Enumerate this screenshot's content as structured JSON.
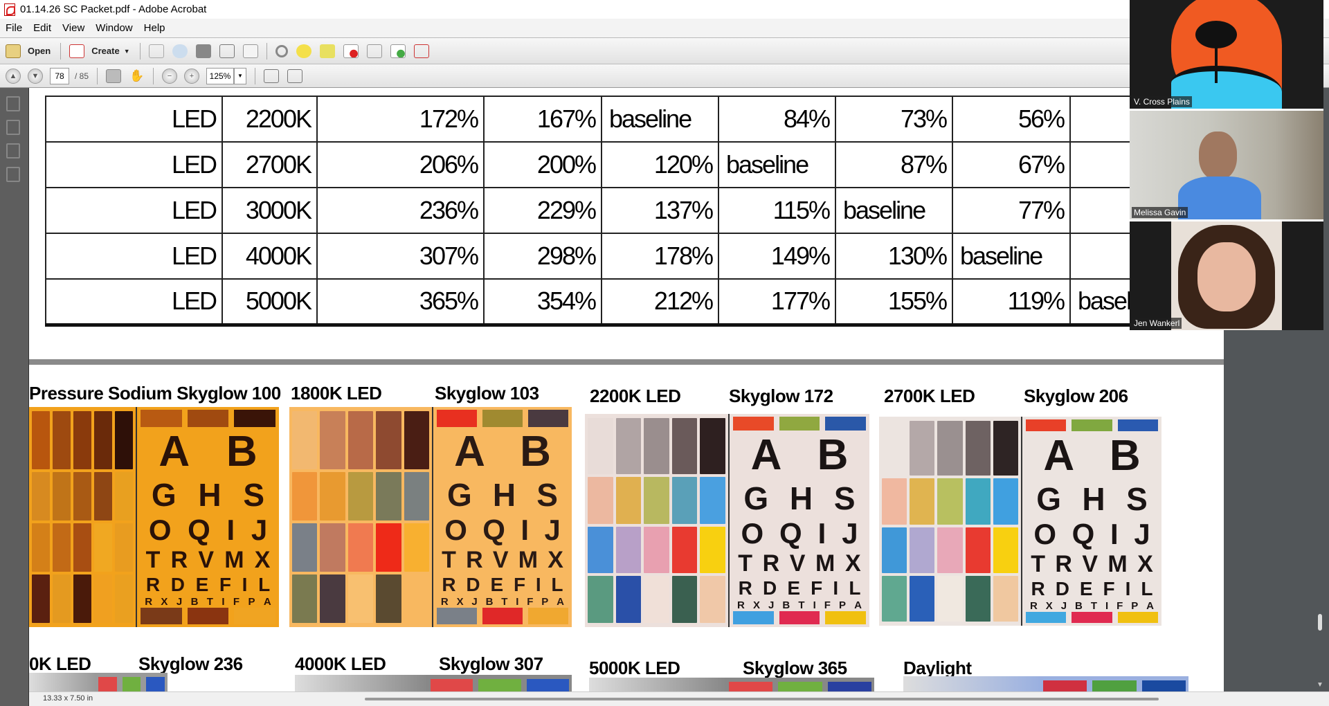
{
  "window": {
    "title": "01.14.26 SC Packet.pdf - Adobe Acrobat"
  },
  "menu": [
    "File",
    "Edit",
    "View",
    "Window",
    "Help"
  ],
  "toolbar": {
    "open": "Open",
    "create": "Create"
  },
  "nav": {
    "page": "78",
    "total": "/ 85",
    "zoom": "125%"
  },
  "table": {
    "rows": [
      [
        "LED",
        "2200K",
        "172%",
        "167%",
        "baseline",
        "84%",
        "73%",
        "56%",
        ""
      ],
      [
        "LED",
        "2700K",
        "206%",
        "200%",
        "120%",
        "baseline",
        "87%",
        "67%",
        ""
      ],
      [
        "LED",
        "3000K",
        "236%",
        "229%",
        "137%",
        "115%",
        "baseline",
        "77%",
        ""
      ],
      [
        "LED",
        "4000K",
        "307%",
        "298%",
        "178%",
        "149%",
        "130%",
        "baseline",
        ""
      ],
      [
        "LED",
        "5000K",
        "365%",
        "354%",
        "212%",
        "177%",
        "155%",
        "119%",
        "baseline"
      ]
    ]
  },
  "photos": {
    "row1_labels": [
      "Pressure Sodium Skyglow 100",
      "1800K LED",
      "Skyglow 103",
      "2200K LED",
      "Skyglow 172",
      "2700K LED",
      "Skyglow 206"
    ],
    "row2_labels": [
      "0K LED",
      "Skyglow 236",
      "4000K LED",
      "Skyglow 307",
      "5000K LED",
      "Skyglow 365",
      "Daylight"
    ],
    "eye_chart": [
      "A B",
      "G H S",
      "O Q I J",
      "T R V M X",
      "R D E F I L",
      "R X J B T I F P A"
    ],
    "panels": [
      {
        "bg": "#f2a21c",
        "ink": "#2a1208",
        "grid": [
          "#b8560e",
          "#9e4a10",
          "#8a3a0c",
          "#6a2a0a",
          "#2e1008",
          "#d78a20",
          "#c07418",
          "#a95a14",
          "#8e4614",
          "#e8a020",
          "#d48018",
          "#c26a16",
          "#a84e12",
          "#f0a822",
          "#e89c20",
          "#5a2010",
          "#e49a20",
          "#4a1a0a",
          "#f0a020",
          "#eaa020"
        ],
        "top": [
          "#b85a12",
          "#a04a10",
          "#3a1408"
        ],
        "bot": [
          "#7a3a18",
          "#8a3410",
          "#f0a422"
        ]
      },
      {
        "bg": "#f8b860",
        "ink": "#2a1a14",
        "grid": [
          "#f2b870",
          "#c88058",
          "#b86a48",
          "#8e4a30",
          "#4a1e14",
          "#f0963a",
          "#e89a30",
          "#b89a40",
          "#7a7a5a",
          "#7a8080",
          "#7a8088",
          "#c07a60",
          "#f07a50",
          "#ee2a18",
          "#f8b030",
          "#7a7a50",
          "#4a3a40",
          "#f8c070",
          "#5a4a30",
          "#f8b860"
        ],
        "top": [
          "#e83020",
          "#a08a30",
          "#4a3a40"
        ],
        "bot": [
          "#7a8088",
          "#e02828",
          "#f0a830"
        ]
      },
      {
        "bg": "#ece0dc",
        "ink": "#1a1414",
        "grid": [
          "#e8dcd8",
          "#b0a4a4",
          "#9a8e8e",
          "#6a5a5a",
          "#2e2020",
          "#ecb8a0",
          "#e0b050",
          "#b8b860",
          "#5aa0b8",
          "#4aa0e0",
          "#4a90d8",
          "#b8a0c8",
          "#e8a0b0",
          "#e83a30",
          "#f8d010",
          "#5a9a80",
          "#2a50a8",
          "#f0e0d8",
          "#3a6050",
          "#f0c8a8"
        ],
        "top": [
          "#e84a28",
          "#90a840",
          "#2a58a8"
        ],
        "bot": [
          "#40a0e0",
          "#e02a50",
          "#f0c010"
        ]
      },
      {
        "bg": "#ece4e0",
        "ink": "#1a1414",
        "grid": [
          "#ece4e0",
          "#b4a8a8",
          "#9a9090",
          "#6e6262",
          "#2e2424",
          "#f0b8a0",
          "#e0b450",
          "#b8c060",
          "#40a8c0",
          "#40a0e0",
          "#4098d8",
          "#b0a8d0",
          "#e8a8b8",
          "#e83a30",
          "#f8d010",
          "#60a890",
          "#2a60b8",
          "#f0e8e0",
          "#3a6a58",
          "#f0c8a0"
        ],
        "top": [
          "#e84028",
          "#80a840",
          "#2a5ab0"
        ],
        "bot": [
          "#40a8e0",
          "#e02a50",
          "#f0c010"
        ]
      }
    ],
    "row2_colors": [
      [
        "#9a9a9a",
        "#e04848",
        "#70b040",
        "#2a58c0"
      ],
      [
        "#888",
        "#e04848",
        "#70b040",
        "#2a58c0"
      ],
      [
        "#888",
        "#e04848",
        "#70b040",
        "#2a40a0"
      ],
      [
        "#9ab0e0",
        "#d03040",
        "#50a040",
        "#1a4aa0"
      ]
    ]
  },
  "status": {
    "page_size": "13.33 x 7.50 in"
  },
  "video": {
    "participants": [
      "V. Cross Plains",
      "Melissa Gavin",
      "Jen Wankerl"
    ]
  }
}
